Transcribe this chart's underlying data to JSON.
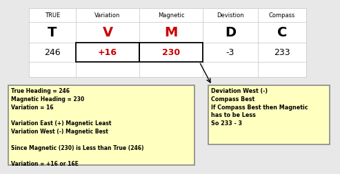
{
  "col_headers": [
    "TRUE",
    "Variation",
    "Magnetic",
    "Devistion",
    "Compass"
  ],
  "col_letters": [
    "T",
    "V",
    "M",
    "D",
    "C"
  ],
  "col_values": [
    "246",
    "+16",
    "230",
    "-3",
    "233"
  ],
  "grid_color": "#cccccc",
  "note_box1_lines": [
    "True Heading = 246",
    "Magnetic Heading = 230",
    "Variation = 16",
    "",
    "Variation East (+) Magnetic Least",
    "Variation West (-) Magnetic Best",
    "",
    "Since Magnetic (230) is Less than True (246)",
    "",
    "Variation = +16 or 16E"
  ],
  "note_box2_lines": [
    "Deviation West (-)",
    "Compass Best",
    "If Compass Best then Magnetic",
    "has to be Less",
    "So 233 - 3"
  ],
  "note_box_bg": "#ffffc0",
  "note_box_border": "#888888",
  "red_color": "#cc0000",
  "black_color": "#000000",
  "background_color": "#e8e8e8"
}
